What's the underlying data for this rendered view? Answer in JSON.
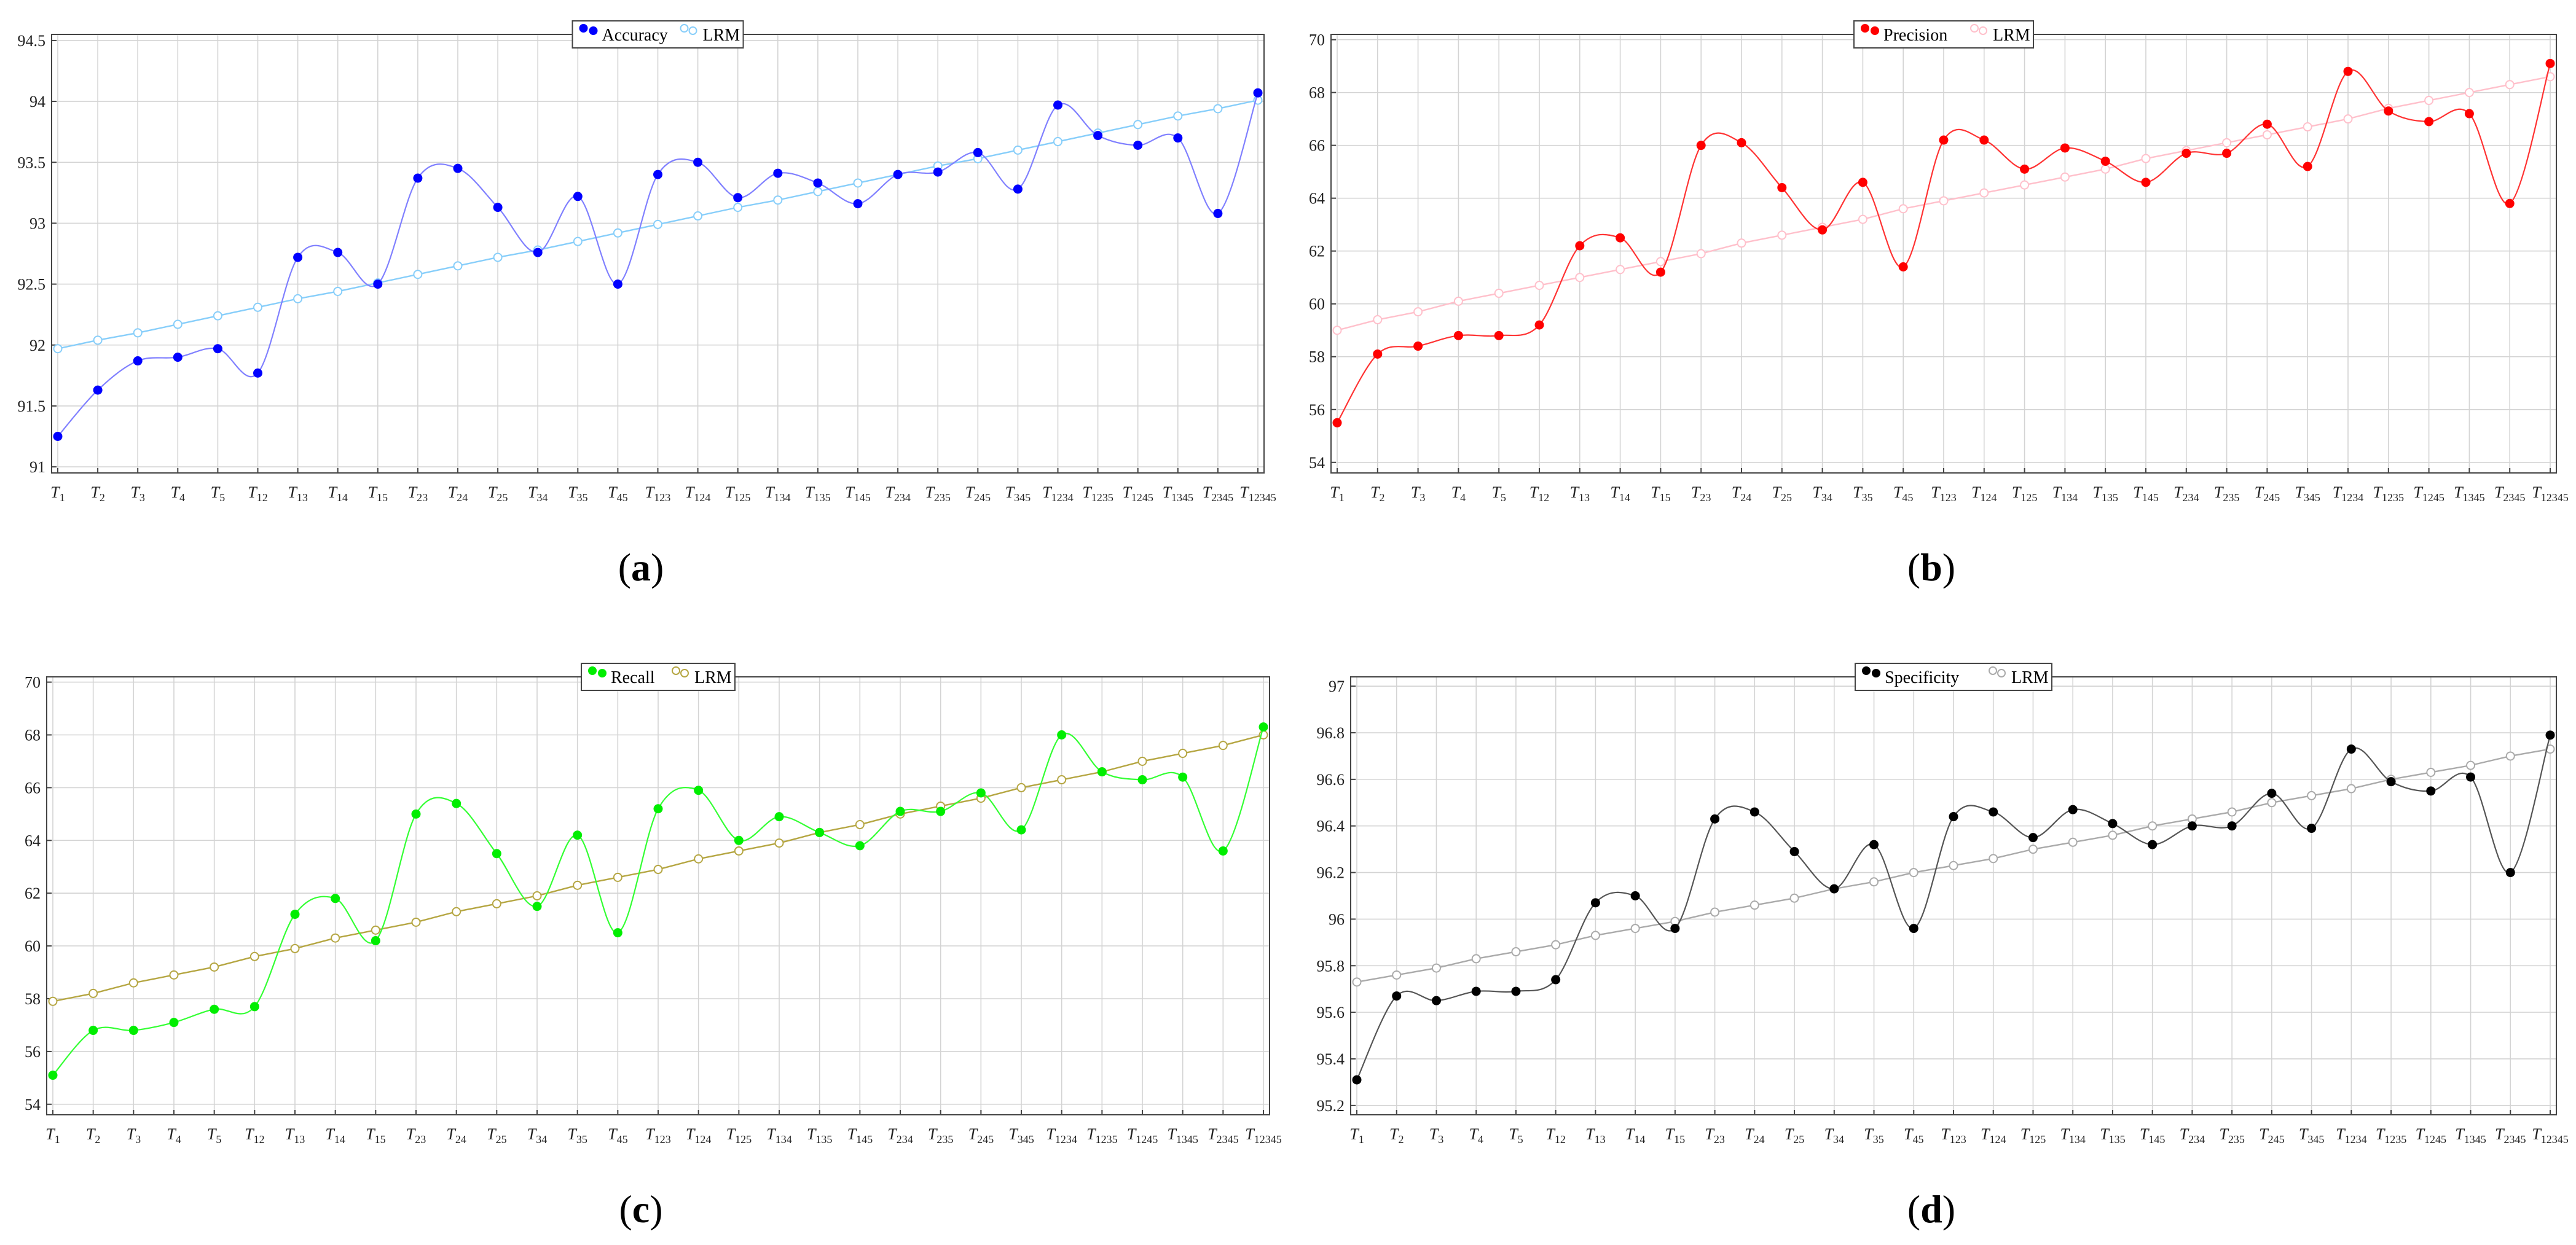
{
  "chart_data": [
    {
      "type": "line",
      "caption": "a",
      "categories": [
        "T_{1}",
        "T_{2}",
        "T_{3}",
        "T_{4}",
        "T_{5}",
        "T_{12}",
        "T_{13}",
        "T_{14}",
        "T_{15}",
        "T_{23}",
        "T_{24}",
        "T_{25}",
        "T_{34}",
        "T_{35}",
        "T_{45}",
        "T_{123}",
        "T_{124}",
        "T_{125}",
        "T_{134}",
        "T_{135}",
        "T_{145}",
        "T_{234}",
        "T_{235}",
        "T_{245}",
        "T_{345}",
        "T_{1234}",
        "T_{1235}",
        "T_{1245}",
        "T_{1345}",
        "T_{2345}",
        "T_{12345}"
      ],
      "ylim": [
        90.95,
        94.55
      ],
      "yticks": [
        "91",
        "91.5",
        "92",
        "92.5",
        "93",
        "93.5",
        "94",
        "94.5"
      ],
      "legend_position": "top-center",
      "grid": true,
      "series": [
        {
          "name": "Accuracy",
          "color": "#0000ff",
          "line_color": "#8080ff",
          "marker": "filled",
          "values": [
            91.25,
            91.63,
            91.87,
            91.9,
            91.97,
            91.77,
            92.72,
            92.76,
            92.5,
            93.37,
            93.45,
            93.13,
            92.76,
            93.22,
            92.5,
            93.4,
            93.5,
            93.21,
            93.41,
            93.33,
            93.16,
            93.4,
            93.42,
            93.58,
            93.28,
            93.97,
            93.72,
            93.64,
            93.7,
            93.08,
            94.07
          ]
        },
        {
          "name": "LRM",
          "color": "#87cefa",
          "line_color": "#87cefa",
          "marker": "open",
          "values": [
            91.97,
            92.04,
            92.1,
            92.17,
            92.24,
            92.31,
            92.38,
            92.44,
            92.51,
            92.58,
            92.65,
            92.72,
            92.78,
            92.85,
            92.92,
            92.99,
            93.06,
            93.13,
            93.19,
            93.26,
            93.33,
            93.4,
            93.47,
            93.53,
            93.6,
            93.67,
            93.74,
            93.81,
            93.88,
            93.94,
            94.01
          ]
        }
      ]
    },
    {
      "type": "line",
      "caption": "b",
      "categories": [
        "T_{1}",
        "T_{2}",
        "T_{3}",
        "T_{4}",
        "T_{5}",
        "T_{12}",
        "T_{13}",
        "T_{14}",
        "T_{15}",
        "T_{23}",
        "T_{24}",
        "T_{25}",
        "T_{34}",
        "T_{35}",
        "T_{45}",
        "T_{123}",
        "T_{124}",
        "T_{125}",
        "T_{134}",
        "T_{135}",
        "T_{145}",
        "T_{234}",
        "T_{235}",
        "T_{245}",
        "T_{345}",
        "T_{1234}",
        "T_{1235}",
        "T_{1245}",
        "T_{1345}",
        "T_{2345}",
        "T_{12345}"
      ],
      "ylim": [
        53.6,
        70.2
      ],
      "yticks": [
        "54",
        "56",
        "58",
        "60",
        "62",
        "64",
        "66",
        "68",
        "70"
      ],
      "legend_position": "top-center",
      "grid": true,
      "series": [
        {
          "name": "Precision",
          "color": "#ff0000",
          "line_color": "#ff3333",
          "marker": "filled",
          "values": [
            55.5,
            58.1,
            58.4,
            58.8,
            58.8,
            59.2,
            62.2,
            62.5,
            61.2,
            66.0,
            66.1,
            64.4,
            62.8,
            64.6,
            61.4,
            66.2,
            66.2,
            65.1,
            65.9,
            65.4,
            64.6,
            65.7,
            65.7,
            66.8,
            65.2,
            68.8,
            67.3,
            66.9,
            67.2,
            63.8,
            69.1
          ]
        },
        {
          "name": "LRM",
          "color": "#ffc0cb",
          "line_color": "#ffc0cb",
          "marker": "open",
          "values": [
            59.0,
            59.4,
            59.7,
            60.1,
            60.4,
            60.7,
            61.0,
            61.3,
            61.6,
            61.9,
            62.3,
            62.6,
            62.9,
            63.2,
            63.6,
            63.9,
            64.2,
            64.5,
            64.8,
            65.1,
            65.5,
            65.8,
            66.1,
            66.4,
            66.7,
            67.0,
            67.4,
            67.7,
            68.0,
            68.3,
            68.6
          ]
        }
      ]
    },
    {
      "type": "line",
      "caption": "c",
      "categories": [
        "T_{1}",
        "T_{2}",
        "T_{3}",
        "T_{4}",
        "T_{5}",
        "T_{12}",
        "T_{13}",
        "T_{14}",
        "T_{15}",
        "T_{23}",
        "T_{24}",
        "T_{25}",
        "T_{34}",
        "T_{35}",
        "T_{45}",
        "T_{123}",
        "T_{124}",
        "T_{125}",
        "T_{134}",
        "T_{135}",
        "T_{145}",
        "T_{234}",
        "T_{235}",
        "T_{245}",
        "T_{345}",
        "T_{1234}",
        "T_{1235}",
        "T_{1245}",
        "T_{1345}",
        "T_{2345}",
        "T_{12345}"
      ],
      "ylim": [
        53.6,
        70.2
      ],
      "yticks": [
        "54",
        "56",
        "58",
        "60",
        "62",
        "64",
        "66",
        "68",
        "70"
      ],
      "legend_position": "top-center",
      "grid": true,
      "series": [
        {
          "name": "Recall",
          "color": "#00ee00",
          "line_color": "#33ff33",
          "marker": "filled",
          "values": [
            55.1,
            56.8,
            56.8,
            57.1,
            57.6,
            57.7,
            61.2,
            61.8,
            60.2,
            65.0,
            65.4,
            63.5,
            61.5,
            64.2,
            60.5,
            65.2,
            65.9,
            64.0,
            64.9,
            64.3,
            63.8,
            65.1,
            65.1,
            65.8,
            64.4,
            68.0,
            66.6,
            66.3,
            66.4,
            63.6,
            68.3
          ]
        },
        {
          "name": "LRM",
          "color": "#b5a642",
          "line_color": "#b5a642",
          "marker": "open",
          "values": [
            57.9,
            58.2,
            58.6,
            58.9,
            59.2,
            59.6,
            59.9,
            60.3,
            60.6,
            60.9,
            61.3,
            61.6,
            61.9,
            62.3,
            62.6,
            62.9,
            63.3,
            63.6,
            63.9,
            64.3,
            64.6,
            65.0,
            65.3,
            65.6,
            66.0,
            66.3,
            66.6,
            67.0,
            67.3,
            67.6,
            68.0
          ]
        }
      ]
    },
    {
      "type": "line",
      "caption": "d",
      "categories": [
        "T_{1}",
        "T_{2}",
        "T_{3}",
        "T_{4}",
        "T_{5}",
        "T_{12}",
        "T_{13}",
        "T_{14}",
        "T_{15}",
        "T_{23}",
        "T_{24}",
        "T_{25}",
        "T_{34}",
        "T_{35}",
        "T_{45}",
        "T_{123}",
        "T_{124}",
        "T_{125}",
        "T_{134}",
        "T_{135}",
        "T_{145}",
        "T_{234}",
        "T_{235}",
        "T_{245}",
        "T_{345}",
        "T_{1234}",
        "T_{1235}",
        "T_{1245}",
        "T_{1345}",
        "T_{2345}",
        "T_{12345}"
      ],
      "ylim": [
        95.16,
        97.04
      ],
      "yticks": [
        "95.2",
        "95.4",
        "95.6",
        "95.8",
        "96",
        "96.2",
        "96.4",
        "96.6",
        "96.8",
        "97"
      ],
      "legend_position": "top-center",
      "grid": true,
      "series": [
        {
          "name": "Specificity",
          "color": "#000000",
          "line_color": "#555555",
          "marker": "filled",
          "values": [
            95.31,
            95.67,
            95.65,
            95.69,
            95.69,
            95.74,
            96.07,
            96.1,
            95.96,
            96.43,
            96.46,
            96.29,
            96.13,
            96.32,
            95.96,
            96.44,
            96.46,
            96.35,
            96.47,
            96.41,
            96.32,
            96.4,
            96.4,
            96.54,
            96.39,
            96.73,
            96.59,
            96.55,
            96.61,
            96.2,
            96.79
          ]
        },
        {
          "name": "LRM",
          "color": "#aaaaaa",
          "line_color": "#aaaaaa",
          "marker": "open",
          "values": [
            95.73,
            95.76,
            95.79,
            95.83,
            95.86,
            95.89,
            95.93,
            95.96,
            95.99,
            96.03,
            96.06,
            96.09,
            96.13,
            96.16,
            96.2,
            96.23,
            96.26,
            96.3,
            96.33,
            96.36,
            96.4,
            96.43,
            96.46,
            96.5,
            96.53,
            96.56,
            96.6,
            96.63,
            96.66,
            96.7,
            96.73
          ]
        }
      ]
    }
  ],
  "captions": {
    "a": "(a)",
    "b": "(b)",
    "c": "(c)",
    "d": "(d)"
  }
}
